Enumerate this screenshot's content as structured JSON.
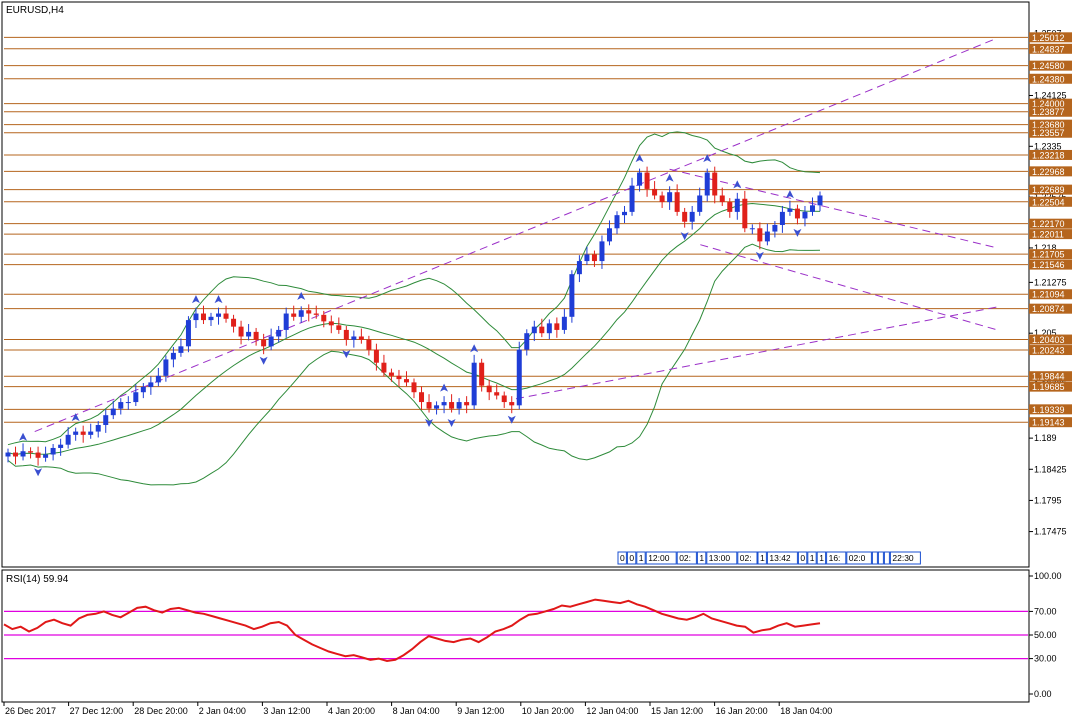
{
  "window": {
    "title": "EURUSD,H4"
  },
  "rsi_panel": {
    "label": "RSI(14) 59.94"
  },
  "colors": {
    "bull": "#1f3dd6",
    "bear": "#e0201a",
    "bands": "#2e8b3a",
    "level_lines": "#b5651d",
    "trend_lines": "#9b30c8",
    "rsi_line": "#e01818",
    "rsi_levels": "#e000e0",
    "fractals": "#3a4fd0"
  },
  "chart_data": [
    {
      "type": "candlestick",
      "title": "EURUSD,H4",
      "symbol": "EURUSD",
      "timeframe": "H4",
      "ylim": [
        1.1695,
        1.2552
      ],
      "y_ticks": [
        1.2507,
        1.24125,
        1.2335,
        1.22575,
        1.218,
        1.21275,
        1.205,
        1.19725,
        1.189,
        1.18425,
        1.1795,
        1.17475
      ],
      "x_tick_labels": [
        "26 Dec 2017",
        "27 Dec 12:00",
        "28 Dec 20:00",
        "2 Jan 04:00",
        "3 Jan 12:00",
        "4 Jan 20:00",
        "8 Jan 04:00",
        "9 Jan 12:00",
        "10 Jan 20:00",
        "12 Jan 04:00",
        "15 Jan 12:00",
        "16 Jan 20:00",
        "18 Jan 04:00"
      ],
      "price_levels": [
        1.25012,
        1.24837,
        1.2458,
        1.2438,
        1.24,
        1.23877,
        1.2368,
        1.23557,
        1.23218,
        1.22968,
        1.22689,
        1.22504,
        1.2217,
        1.22011,
        1.21705,
        1.21546,
        1.21094,
        1.20874,
        1.20403,
        1.20243,
        1.19844,
        1.19685,
        1.19339,
        1.19143
      ],
      "close_series": [
        1.1868,
        1.1862,
        1.187,
        1.1868,
        1.186,
        1.1865,
        1.1875,
        1.188,
        1.1895,
        1.19,
        1.1895,
        1.19,
        1.191,
        1.1925,
        1.1935,
        1.1945,
        1.1945,
        1.196,
        1.1968,
        1.1975,
        1.1985,
        1.201,
        1.202,
        1.203,
        1.207,
        1.208,
        1.207,
        1.2075,
        1.208,
        1.2072,
        1.206,
        1.2045,
        1.2052,
        1.204,
        1.203,
        1.2045,
        1.2055,
        1.208,
        1.2075,
        1.2085,
        1.208,
        1.2078,
        1.2068,
        1.2062,
        1.2055,
        1.204,
        1.2045,
        1.204,
        1.2025,
        1.2005,
        1.199,
        1.1985,
        1.198,
        1.1975,
        1.196,
        1.1945,
        1.1935,
        1.194,
        1.1945,
        1.1935,
        1.1945,
        1.194,
        1.2005,
        1.197,
        1.196,
        1.1955,
        1.1945,
        1.194,
        1.2025,
        1.205,
        1.206,
        1.205,
        1.2065,
        1.2055,
        1.2075,
        1.214,
        1.216,
        1.217,
        1.216,
        1.219,
        1.221,
        1.223,
        1.2235,
        1.2275,
        1.2295,
        1.227,
        1.226,
        1.225,
        1.2265,
        1.2235,
        1.222,
        1.2235,
        1.226,
        1.2295,
        1.226,
        1.225,
        1.2235,
        1.2255,
        1.221,
        1.221,
        1.219,
        1.2205,
        1.2215,
        1.2235,
        1.224,
        1.2225,
        1.2235,
        1.2245,
        1.226
      ],
      "volume_labels": [
        "0",
        "0",
        "1",
        "12:00",
        "02:",
        "1",
        "13:00",
        "02:",
        "1",
        "13:42",
        "0",
        "1",
        "1",
        "16:",
        "02:0",
        "",
        "",
        "",
        "22:30"
      ]
    },
    {
      "type": "line",
      "title": "RSI(14) 59.94",
      "ylim": [
        0,
        100
      ],
      "y_ticks": [
        100,
        70,
        50,
        30,
        0
      ],
      "levels": [
        70,
        50,
        30
      ],
      "series": [
        {
          "name": "RSI(14)",
          "values": [
            59,
            55,
            57,
            53,
            56,
            61,
            63,
            60,
            58,
            64,
            67,
            68,
            70,
            67,
            65,
            69,
            73,
            74,
            71,
            69,
            72,
            73,
            71,
            69,
            68,
            66,
            64,
            62,
            60,
            58,
            55,
            57,
            60,
            61,
            58,
            50,
            46,
            42,
            39,
            36,
            34,
            32,
            33,
            31,
            29,
            30,
            28,
            29,
            33,
            38,
            44,
            49,
            47,
            45,
            44,
            46,
            47,
            44,
            48,
            53,
            55,
            58,
            63,
            67,
            68,
            70,
            72,
            75,
            74,
            76,
            78,
            80,
            79,
            78,
            77,
            79,
            76,
            74,
            71,
            68,
            66,
            64,
            63,
            65,
            68,
            64,
            62,
            60,
            58,
            57,
            52,
            54,
            55,
            58,
            60,
            57,
            58,
            59,
            60
          ]
        }
      ]
    }
  ]
}
